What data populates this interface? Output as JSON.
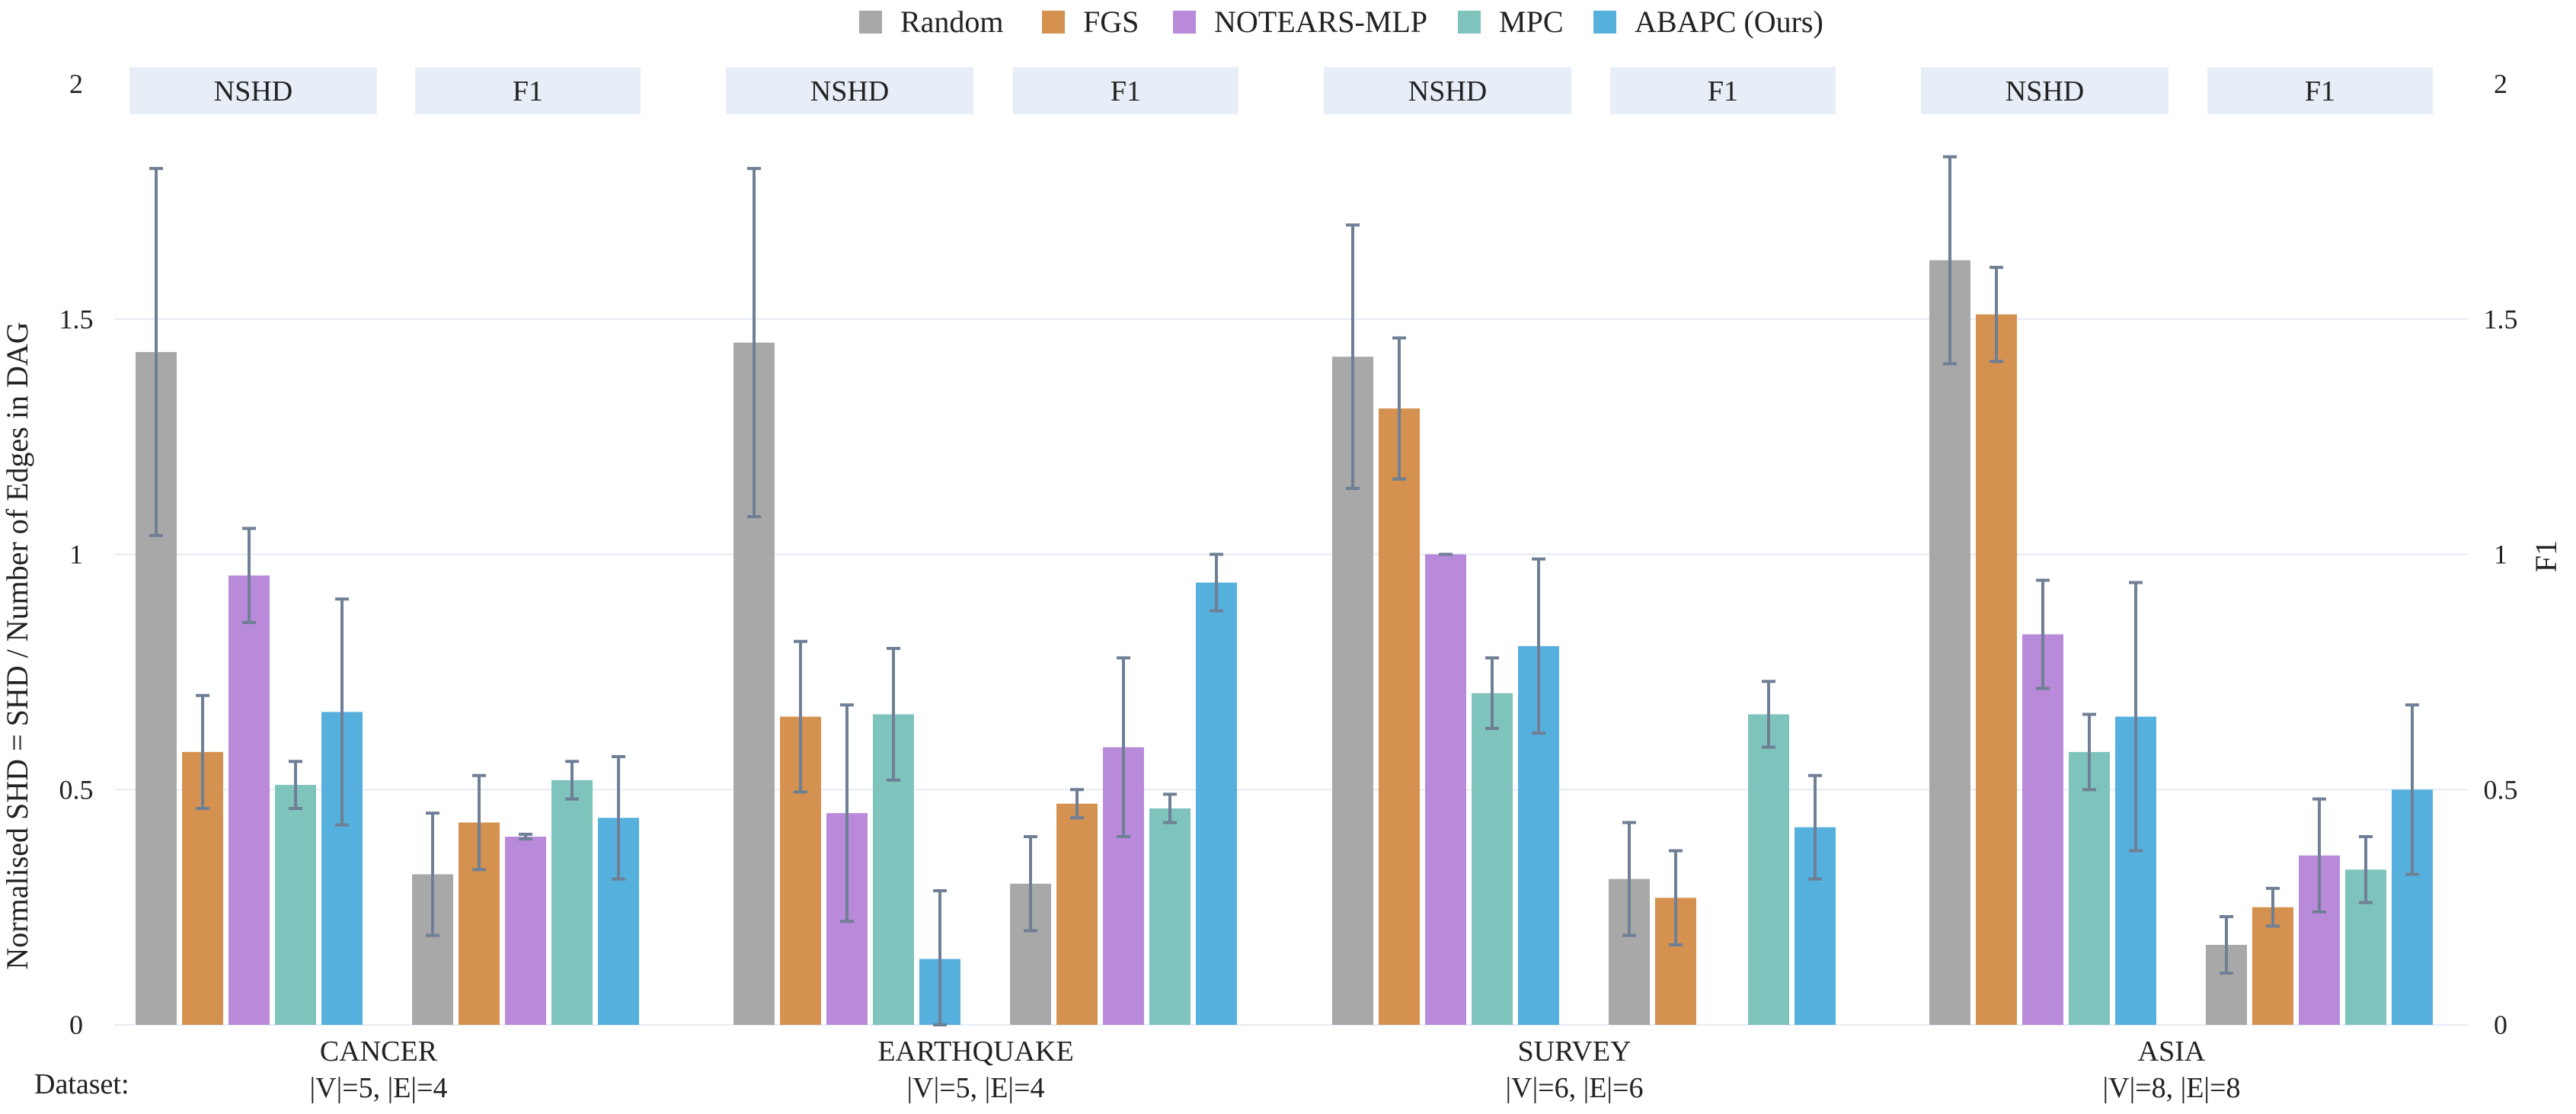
{
  "chart_data": {
    "type": "bar",
    "legend": {
      "placement": "top-center",
      "entries": [
        {
          "name": "Random",
          "color": "#a8a8a8"
        },
        {
          "name": "FGS",
          "color": "#d4914f"
        },
        {
          "name": "NOTEARS-MLP",
          "color": "#b98ad9"
        },
        {
          "name": "MPC",
          "color": "#7fc3bd"
        },
        {
          "name": "ABAPC (Ours)",
          "color": "#56b0dd"
        }
      ]
    },
    "ylabel_left": "Normalised SHD = SHD / Number of Edges in DAG",
    "ylabel_right": "F1",
    "ylim": [
      0,
      2
    ],
    "yticks": [
      0,
      0.5,
      1,
      1.5,
      2
    ],
    "ytick_labels": [
      "0",
      "0.5",
      "1",
      "1.5",
      "2"
    ],
    "grid": true,
    "xlabel_prefix": "Dataset:",
    "metric_labels": {
      "nshd": "NSHD",
      "f1": "F1"
    },
    "error_bar_color": "#6f7f95",
    "datasets": [
      {
        "name": "CANCER",
        "sub": "|V|=5, |E|=4",
        "nshd": {
          "values": [
            1.43,
            0.58,
            0.955,
            0.51,
            0.665
          ],
          "errors": [
            0.39,
            0.12,
            0.1,
            0.05,
            0.24
          ]
        },
        "f1": {
          "values": [
            0.32,
            0.43,
            0.4,
            0.52,
            0.44
          ],
          "errors": [
            0.13,
            0.1,
            0.005,
            0.04,
            0.13
          ]
        }
      },
      {
        "name": "EARTHQUAKE",
        "sub": "|V|=5, |E|=4",
        "nshd": {
          "values": [
            1.45,
            0.655,
            0.45,
            0.66,
            0.14
          ],
          "errors": [
            0.37,
            0.16,
            0.23,
            0.14,
            0.145
          ]
        },
        "f1": {
          "values": [
            0.3,
            0.47,
            0.59,
            0.46,
            0.94
          ],
          "errors": [
            0.1,
            0.03,
            0.19,
            0.03,
            0.06
          ]
        }
      },
      {
        "name": "SURVEY",
        "sub": "|V|=6, |E|=6",
        "nshd": {
          "values": [
            1.42,
            1.31,
            1.0,
            0.705,
            0.805
          ],
          "errors": [
            0.28,
            0.15,
            0.0,
            0.075,
            0.185
          ]
        },
        "f1": {
          "values": [
            0.31,
            0.27,
            null,
            0.66,
            0.42
          ],
          "errors": [
            0.12,
            0.1,
            null,
            0.07,
            0.11
          ]
        }
      },
      {
        "name": "ASIA",
        "sub": "|V|=8, |E|=8",
        "nshd": {
          "values": [
            1.625,
            1.51,
            0.83,
            0.58,
            0.655
          ],
          "errors": [
            0.22,
            0.1,
            0.115,
            0.08,
            0.285
          ]
        },
        "f1": {
          "values": [
            0.17,
            0.25,
            0.36,
            0.33,
            0.5
          ],
          "errors": [
            0.06,
            0.04,
            0.12,
            0.07,
            0.18
          ]
        }
      }
    ]
  }
}
